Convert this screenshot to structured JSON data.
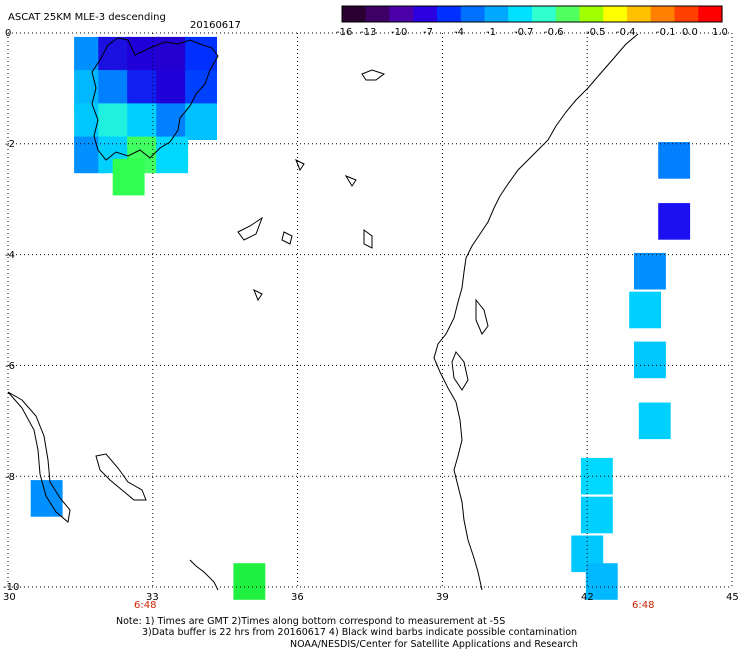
{
  "header": {
    "title": "ASCAT 25KM MLE-3 descending",
    "date": "20160617"
  },
  "colorbar": {
    "ticks": [
      "-16",
      "-13",
      "-10",
      "-7",
      "-4",
      "-1",
      "-0.7",
      "-0.6",
      "-0.5",
      "-0.4",
      "-0.1",
      "0.0",
      "1.0"
    ],
    "colors": [
      "#2a0030",
      "#3d0066",
      "#4b00a8",
      "#2a00e0",
      "#0030ff",
      "#0070ff",
      "#00a8ff",
      "#00e0ff",
      "#30ffd0",
      "#50ff60",
      "#a0ff00",
      "#ffff00",
      "#ffc000",
      "#ff8000",
      "#ff4000",
      "#ff0000"
    ]
  },
  "axes": {
    "x_ticks": [
      "30",
      "33",
      "36",
      "39",
      "42",
      "45"
    ],
    "y_ticks": [
      "0",
      "-2",
      "-4",
      "-6",
      "-8",
      "-10"
    ],
    "time_labels": [
      "6:48",
      "6:48"
    ]
  },
  "chart_data": {
    "type": "heatmap",
    "lon_range": [
      30,
      45
    ],
    "lat_range": [
      -10,
      0
    ],
    "grid": true,
    "cells": [
      {
        "lon": 31.7,
        "lat": -0.4,
        "value": -4,
        "color": "#0090ff"
      },
      {
        "lon": 32.2,
        "lat": -0.4,
        "value": -10,
        "color": "#1a10e0"
      },
      {
        "lon": 32.8,
        "lat": -0.4,
        "value": -10,
        "color": "#2000d8"
      },
      {
        "lon": 33.4,
        "lat": -0.4,
        "value": -10,
        "color": "#2400d0"
      },
      {
        "lon": 34.0,
        "lat": -0.4,
        "value": -7,
        "color": "#0030ff"
      },
      {
        "lon": 31.7,
        "lat": -1.0,
        "value": -1,
        "color": "#00b8ff"
      },
      {
        "lon": 32.2,
        "lat": -1.0,
        "value": -4,
        "color": "#0080ff"
      },
      {
        "lon": 32.8,
        "lat": -1.0,
        "value": -7,
        "color": "#1020f0"
      },
      {
        "lon": 33.4,
        "lat": -1.0,
        "value": -10,
        "color": "#2000d8"
      },
      {
        "lon": 34.0,
        "lat": -1.0,
        "value": -7,
        "color": "#0040ff"
      },
      {
        "lon": 31.7,
        "lat": -1.6,
        "value": -1,
        "color": "#00c8ff"
      },
      {
        "lon": 32.2,
        "lat": -1.6,
        "value": -0.6,
        "color": "#20f0e0"
      },
      {
        "lon": 32.8,
        "lat": -1.6,
        "value": -1,
        "color": "#00d0ff"
      },
      {
        "lon": 33.4,
        "lat": -1.6,
        "value": -4,
        "color": "#0080ff"
      },
      {
        "lon": 34.0,
        "lat": -1.6,
        "value": -1,
        "color": "#00c0ff"
      },
      {
        "lon": 31.7,
        "lat": -2.2,
        "value": -4,
        "color": "#0090ff"
      },
      {
        "lon": 32.2,
        "lat": -2.2,
        "value": -1,
        "color": "#00d0ff"
      },
      {
        "lon": 32.8,
        "lat": -2.2,
        "value": -0.4,
        "color": "#40ff60"
      },
      {
        "lon": 33.4,
        "lat": -2.2,
        "value": -1,
        "color": "#00d8ff"
      },
      {
        "lon": 32.5,
        "lat": -2.6,
        "value": -0.4,
        "color": "#30ff50"
      },
      {
        "lon": 43.8,
        "lat": -2.3,
        "value": -4,
        "color": "#0080ff"
      },
      {
        "lon": 43.8,
        "lat": -3.4,
        "value": -10,
        "color": "#1a10f0"
      },
      {
        "lon": 43.3,
        "lat": -4.3,
        "value": -4,
        "color": "#0090ff"
      },
      {
        "lon": 43.2,
        "lat": -5.0,
        "value": -1,
        "color": "#00d0ff"
      },
      {
        "lon": 43.3,
        "lat": -5.9,
        "value": -1,
        "color": "#00c8ff"
      },
      {
        "lon": 43.4,
        "lat": -7.0,
        "value": -1,
        "color": "#00d0ff"
      },
      {
        "lon": 42.2,
        "lat": -8.0,
        "value": -1,
        "color": "#00d8ff"
      },
      {
        "lon": 42.2,
        "lat": -8.7,
        "value": -1,
        "color": "#00d0ff"
      },
      {
        "lon": 42.0,
        "lat": -9.4,
        "value": -1,
        "color": "#00c8ff"
      },
      {
        "lon": 42.3,
        "lat": -9.9,
        "value": -1,
        "color": "#00b8ff"
      },
      {
        "lon": 30.8,
        "lat": -8.4,
        "value": -4,
        "color": "#0090ff"
      },
      {
        "lon": 35.0,
        "lat": -9.9,
        "value": -0.4,
        "color": "#20f040"
      }
    ]
  },
  "footer": {
    "note1": "Note: 1) Times are GMT 2)Times along bottom correspond to measurement at -5S",
    "note2": "3)Data buffer is 22 hrs from 20160617 4) Black wind barbs indicate possible contamination",
    "note3": "NOAA/NESDIS/Center for Satellite Applications and Research"
  }
}
